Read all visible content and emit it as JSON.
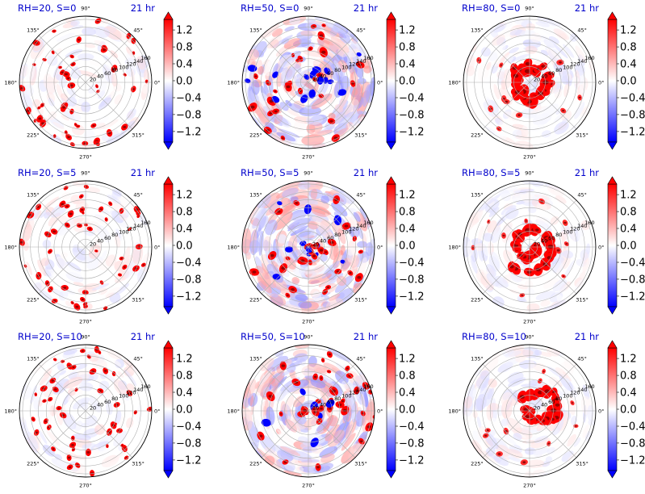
{
  "chart_data": {
    "type": "polar-colormesh-grid",
    "time_label": "21 hr",
    "angle_ticks": [
      "90°",
      "45°",
      "0°",
      "315°",
      "270°",
      "225°",
      "180°",
      "135°"
    ],
    "radial_ticks": [
      "20",
      "40",
      "60",
      "80",
      "100",
      "120",
      "140",
      "160"
    ],
    "colorbar": {
      "ticks": [
        "1.2",
        "0.8",
        "0.4",
        "0.0",
        "−0.4",
        "−0.8",
        "−1.2"
      ],
      "values": [
        1.2,
        0.8,
        0.4,
        0.0,
        -0.4,
        -0.8,
        -1.2
      ],
      "range": [
        -1.45,
        1.45
      ],
      "cmap": "bwr",
      "colors": {
        "low": "#0000ff",
        "mid": "#ffffff",
        "high": "#ff0000"
      }
    },
    "panels": [
      {
        "title": "RH=20, S=0",
        "rh": 20,
        "s": 0,
        "pattern": "scattered"
      },
      {
        "title": "RH=50, S=0",
        "rh": 50,
        "s": 0,
        "pattern": "mixed"
      },
      {
        "title": "RH=80, S=0",
        "rh": 80,
        "s": 0,
        "pattern": "core-ring"
      },
      {
        "title": "RH=20, S=5",
        "rh": 20,
        "s": 5,
        "pattern": "scattered"
      },
      {
        "title": "RH=50, S=5",
        "rh": 50,
        "s": 5,
        "pattern": "mixed"
      },
      {
        "title": "RH=80, S=5",
        "rh": 80,
        "s": 5,
        "pattern": "core-spiral"
      },
      {
        "title": "RH=20, S=10",
        "rh": 20,
        "s": 10,
        "pattern": "scattered-shifted"
      },
      {
        "title": "RH=50, S=10",
        "rh": 50,
        "s": 10,
        "pattern": "mixed-shifted"
      },
      {
        "title": "RH=80, S=10",
        "rh": 80,
        "s": 10,
        "pattern": "core-shifted"
      }
    ]
  }
}
